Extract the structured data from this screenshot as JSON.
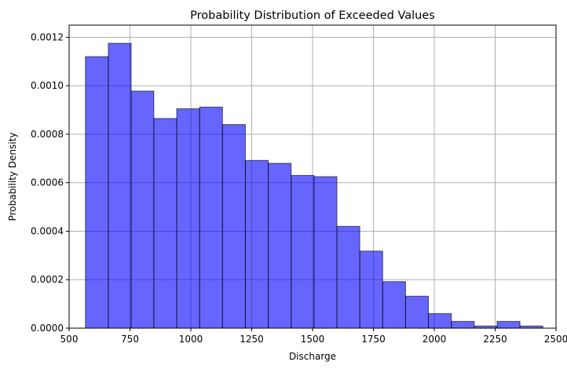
{
  "chart_data": {
    "type": "bar",
    "title": "Probability Distribution of Exceeded Values",
    "xlabel": "Discharge",
    "ylabel": "Probability Density",
    "xlim": [
      500,
      2500
    ],
    "ylim": [
      0,
      0.00125
    ],
    "x_ticks": [
      500,
      750,
      1000,
      1250,
      1500,
      1750,
      2000,
      2250,
      2500
    ],
    "y_ticks": [
      0,
      0.0002,
      0.0004,
      0.0006,
      0.0008,
      0.001,
      0.0012
    ],
    "y_tick_labels": [
      "0.0000",
      "0.0002",
      "0.0004",
      "0.0006",
      "0.0008",
      "0.0010",
      "0.0012"
    ],
    "grid": true,
    "bar_color": "#0000ff",
    "bar_edge_color": "#000000",
    "bins": [
      {
        "x0": 567,
        "x1": 661,
        "value": 0.00112
      },
      {
        "x0": 661,
        "x1": 755,
        "value": 0.001175
      },
      {
        "x0": 755,
        "x1": 848,
        "value": 0.000978
      },
      {
        "x0": 848,
        "x1": 942,
        "value": 0.000865
      },
      {
        "x0": 942,
        "x1": 1036,
        "value": 0.000905
      },
      {
        "x0": 1036,
        "x1": 1130,
        "value": 0.000912
      },
      {
        "x0": 1130,
        "x1": 1224,
        "value": 0.00084
      },
      {
        "x0": 1224,
        "x1": 1318,
        "value": 0.000692
      },
      {
        "x0": 1318,
        "x1": 1412,
        "value": 0.00068
      },
      {
        "x0": 1412,
        "x1": 1506,
        "value": 0.00063
      },
      {
        "x0": 1506,
        "x1": 1600,
        "value": 0.000625
      },
      {
        "x0": 1600,
        "x1": 1694,
        "value": 0.00042
      },
      {
        "x0": 1694,
        "x1": 1788,
        "value": 0.000318
      },
      {
        "x0": 1788,
        "x1": 1882,
        "value": 0.000192
      },
      {
        "x0": 1882,
        "x1": 1976,
        "value": 0.000132
      },
      {
        "x0": 1976,
        "x1": 2070,
        "value": 6e-05
      },
      {
        "x0": 2070,
        "x1": 2164,
        "value": 2.8e-05
      },
      {
        "x0": 2164,
        "x1": 2258,
        "value": 9e-06
      },
      {
        "x0": 2258,
        "x1": 2352,
        "value": 2.8e-05
      },
      {
        "x0": 2352,
        "x1": 2446,
        "value": 9e-06
      }
    ]
  }
}
